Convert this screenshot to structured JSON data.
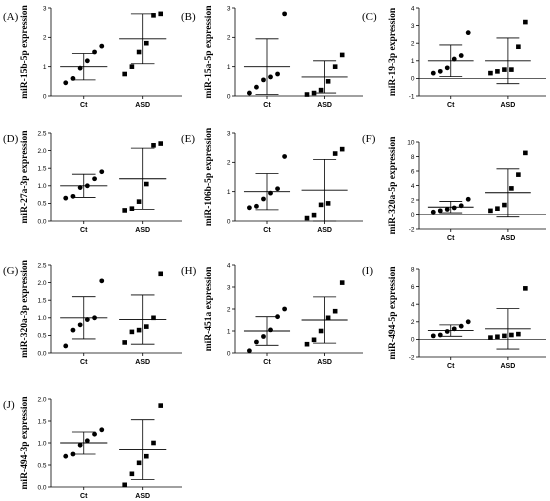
{
  "chart_data": [
    {
      "type": "scatter",
      "panel": "(A)",
      "ylabel": "miR-15b-5p expression",
      "ylim": [
        0,
        3
      ],
      "yticks": [
        "0",
        "1",
        "2",
        "3"
      ],
      "categories": [
        "Ct",
        "ASD"
      ],
      "groups": [
        {
          "name": "Ct",
          "marker": "circle",
          "values": [
            0.45,
            0.6,
            0.95,
            1.2,
            1.5,
            1.7
          ],
          "mean": 1.0,
          "sd": 0.45
        },
        {
          "name": "ASD",
          "marker": "square",
          "values": [
            0.75,
            1.0,
            1.5,
            1.8,
            2.75,
            2.8
          ],
          "mean": 1.95,
          "sd": 0.85
        }
      ]
    },
    {
      "type": "scatter",
      "panel": "(B)",
      "ylabel": "miR-15a-5p expression",
      "ylim": [
        0,
        3
      ],
      "yticks": [
        "0",
        "1",
        "2",
        "3"
      ],
      "categories": [
        "Ct",
        "ASD"
      ],
      "groups": [
        {
          "name": "Ct",
          "marker": "circle",
          "values": [
            0.1,
            0.3,
            0.55,
            0.65,
            0.75,
            2.8
          ],
          "mean": 1.0,
          "sd": 0.95
        },
        {
          "name": "ASD",
          "marker": "square",
          "values": [
            0.05,
            0.1,
            0.2,
            0.5,
            1.0,
            1.4
          ],
          "mean": 0.65,
          "sd": 0.55
        }
      ]
    },
    {
      "type": "scatter",
      "panel": "(C)",
      "ylabel": "miR-19-3p expression",
      "ylim": [
        -1,
        4
      ],
      "yticks": [
        "-1",
        "0",
        "1",
        "2",
        "3",
        "4"
      ],
      "categories": [
        "Ct",
        "ASD"
      ],
      "groups": [
        {
          "name": "Ct",
          "marker": "circle",
          "values": [
            0.3,
            0.4,
            0.6,
            1.1,
            1.3,
            2.6
          ],
          "mean": 1.0,
          "sd": 0.9
        },
        {
          "name": "ASD",
          "marker": "square",
          "values": [
            0.3,
            0.4,
            0.5,
            0.5,
            1.8,
            3.2
          ],
          "mean": 1.0,
          "sd": 1.3
        }
      ]
    },
    {
      "type": "scatter",
      "panel": "(D)",
      "ylabel": "miR-27a-3p expression",
      "ylim": [
        0,
        2.5
      ],
      "yticks": [
        "0.0",
        "0.5",
        "1.0",
        "1.5",
        "2.0",
        "2.5"
      ],
      "categories": [
        "Ct",
        "ASD"
      ],
      "groups": [
        {
          "name": "Ct",
          "marker": "circle",
          "values": [
            0.65,
            0.7,
            0.95,
            1.0,
            1.2,
            1.4
          ],
          "mean": 1.0,
          "sd": 0.33
        },
        {
          "name": "ASD",
          "marker": "square",
          "values": [
            0.3,
            0.35,
            0.55,
            1.05,
            2.15,
            2.2
          ],
          "mean": 1.2,
          "sd": 0.87
        }
      ]
    },
    {
      "type": "scatter",
      "panel": "(E)",
      "ylabel": "miR-106b-5p expression",
      "ylim": [
        0,
        3
      ],
      "yticks": [
        "0",
        "1",
        "2",
        "3"
      ],
      "categories": [
        "Ct",
        "ASD"
      ],
      "groups": [
        {
          "name": "Ct",
          "marker": "circle",
          "values": [
            0.45,
            0.5,
            0.75,
            0.95,
            1.1,
            2.2
          ],
          "mean": 1.0,
          "sd": 0.62
        },
        {
          "name": "ASD",
          "marker": "square",
          "values": [
            0.1,
            0.2,
            0.55,
            0.6,
            2.3,
            2.45
          ],
          "mean": 1.05,
          "sd": 1.05
        }
      ]
    },
    {
      "type": "scatter",
      "panel": "(F)",
      "ylabel": "miR-320a-5p expression",
      "ylim": [
        -2,
        10
      ],
      "yticks": [
        "-2",
        "0",
        "2",
        "4",
        "6",
        "8",
        "10"
      ],
      "categories": [
        "Ct",
        "ASD"
      ],
      "groups": [
        {
          "name": "Ct",
          "marker": "circle",
          "values": [
            0.3,
            0.5,
            0.7,
            0.9,
            1.2,
            2.1
          ],
          "mean": 1.0,
          "sd": 0.8
        },
        {
          "name": "ASD",
          "marker": "square",
          "values": [
            0.5,
            0.8,
            1.3,
            3.6,
            5.5,
            8.5
          ],
          "mean": 3.0,
          "sd": 3.3
        }
      ]
    },
    {
      "type": "scatter",
      "panel": "(G)",
      "ylabel": "miR-320a-3p expression",
      "ylim": [
        0,
        2.5
      ],
      "yticks": [
        "0.0",
        "0.5",
        "1.0",
        "1.5",
        "2.0",
        "2.5"
      ],
      "categories": [
        "Ct",
        "ASD"
      ],
      "groups": [
        {
          "name": "Ct",
          "marker": "circle",
          "values": [
            0.2,
            0.65,
            0.8,
            0.95,
            1.0,
            2.05
          ],
          "mean": 1.0,
          "sd": 0.6
        },
        {
          "name": "ASD",
          "marker": "square",
          "values": [
            0.3,
            0.6,
            0.65,
            0.75,
            1.0,
            2.25
          ],
          "mean": 0.95,
          "sd": 0.7
        }
      ]
    },
    {
      "type": "scatter",
      "panel": "(H)",
      "ylabel": "miR-451a expression",
      "ylim": [
        0,
        4
      ],
      "yticks": [
        "0",
        "1",
        "2",
        "3",
        "4"
      ],
      "categories": [
        "Ct",
        "ASD"
      ],
      "groups": [
        {
          "name": "Ct",
          "marker": "circle",
          "values": [
            0.1,
            0.5,
            0.75,
            1.05,
            1.65,
            2.0
          ],
          "mean": 1.0,
          "sd": 0.65
        },
        {
          "name": "ASD",
          "marker": "square",
          "values": [
            0.4,
            0.6,
            1.0,
            1.6,
            1.9,
            3.2
          ],
          "mean": 1.5,
          "sd": 1.05
        }
      ]
    },
    {
      "type": "scatter",
      "panel": "(I)",
      "ylabel": "miR-494-5p expression",
      "ylim": [
        -2,
        8
      ],
      "yticks": [
        "-2",
        "0",
        "2",
        "4",
        "6",
        "8"
      ],
      "categories": [
        "Ct",
        "ASD"
      ],
      "groups": [
        {
          "name": "Ct",
          "marker": "circle",
          "values": [
            0.4,
            0.5,
            0.9,
            1.2,
            1.5,
            2.0
          ],
          "mean": 1.0,
          "sd": 0.65
        },
        {
          "name": "ASD",
          "marker": "square",
          "values": [
            0.2,
            0.3,
            0.4,
            0.5,
            0.6,
            5.8
          ],
          "mean": 1.2,
          "sd": 2.3
        }
      ]
    },
    {
      "type": "scatter",
      "panel": "(J)",
      "ylabel": "miR-494-3p expression",
      "ylim": [
        0,
        2
      ],
      "yticks": [
        "0.0",
        "0.5",
        "1.0",
        "1.5",
        "2.0"
      ],
      "categories": [
        "Ct",
        "ASD"
      ],
      "groups": [
        {
          "name": "Ct",
          "marker": "circle",
          "values": [
            0.7,
            0.75,
            0.95,
            1.05,
            1.2,
            1.3
          ],
          "mean": 1.0,
          "sd": 0.25
        },
        {
          "name": "ASD",
          "marker": "square",
          "values": [
            0.05,
            0.3,
            0.55,
            0.7,
            1.0,
            1.85
          ],
          "mean": 0.85,
          "sd": 0.68
        }
      ]
    }
  ]
}
